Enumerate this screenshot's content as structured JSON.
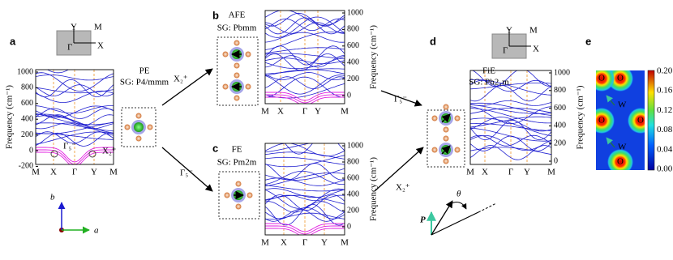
{
  "panels": {
    "a": {
      "label": "a",
      "phase": "PE",
      "space_group": "SG: P4/mmm",
      "y_axis_label": "Frequency (cm⁻¹)",
      "yticks": [
        "1000",
        "800",
        "600",
        "400",
        "200",
        "0",
        "-200"
      ],
      "kpoints": [
        "M",
        "X",
        "Γ",
        "Y",
        "M"
      ],
      "bz_labels": [
        "Y",
        "M",
        "Γ",
        "X"
      ],
      "mode_labels": [
        "Γ₅⁻",
        "X₂⁺"
      ]
    },
    "b": {
      "label": "b",
      "phase": "AFE",
      "space_group": "SG: Pbmm",
      "y_axis_label": "Frequency (cm⁻¹)",
      "yticks": [
        "1000",
        "800",
        "600",
        "400",
        "200",
        "0"
      ],
      "kpoints": [
        "M",
        "X",
        "Γ",
        "Y",
        "M"
      ]
    },
    "c": {
      "label": "c",
      "phase": "FE",
      "space_group": "SG: Pm2m",
      "y_axis_label": "Frequency (cm⁻¹)",
      "yticks": [
        "1000",
        "800",
        "600",
        "400",
        "200",
        "0"
      ],
      "kpoints": [
        "M",
        "X",
        "Γ",
        "Y",
        "M"
      ]
    },
    "d": {
      "label": "d",
      "phase": "FiE",
      "space_group": "SG: Pb2₁m",
      "y_axis_label": "Frequency (cm⁻¹)",
      "yticks": [
        "1000",
        "800",
        "600",
        "400",
        "200",
        "0"
      ],
      "kpoints": [
        "M",
        "X",
        "Γ",
        "Y",
        "M"
      ],
      "bz_labels": [
        "Y",
        "M",
        "Γ",
        "X"
      ]
    },
    "e": {
      "label": "e",
      "colorbar_ticks": [
        "0.20",
        "0.16",
        "0.12",
        "0.08",
        "0.04",
        "0.00"
      ],
      "atom_labels": [
        "O",
        "O",
        "O",
        "O",
        "O"
      ],
      "w_labels": [
        "W",
        "W"
      ]
    }
  },
  "transitions": [
    "X₂⁺",
    "Γ₅⁻",
    "Γ₅⁻",
    "X₂⁺"
  ],
  "axes": {
    "b": "b",
    "a": "a"
  },
  "polarization": {
    "p": "P",
    "theta": "θ"
  }
}
